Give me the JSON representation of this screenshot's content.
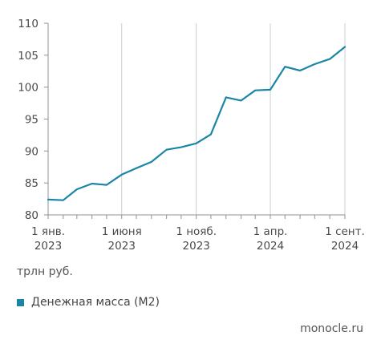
{
  "chart_data": {
    "type": "line",
    "title": "",
    "xlabel": "",
    "ylabel": "",
    "unit_label": "трлн руб.",
    "ylim": [
      80,
      110
    ],
    "yticks": [
      80,
      85,
      90,
      95,
      100,
      105,
      110
    ],
    "xlim": [
      "2023-01-01",
      "2024-09-01"
    ],
    "xticks": [
      {
        "date": "2023-01-01",
        "line1": "1 янв.",
        "line2": "2023"
      },
      {
        "date": "2023-06-01",
        "line1": "1 июня",
        "line2": "2023"
      },
      {
        "date": "2023-11-01",
        "line1": "1 нояб.",
        "line2": "2023"
      },
      {
        "date": "2024-04-01",
        "line1": "1 апр.",
        "line2": "2024"
      },
      {
        "date": "2024-09-01",
        "line1": "1 сент.",
        "line2": "2024"
      }
    ],
    "grid": "vertical",
    "legend_position": "bottom-left",
    "series": [
      {
        "name": "Денежная масса (М2)",
        "color": "#1a86a6",
        "points": [
          {
            "x": "2023-01-01",
            "y": 82.4
          },
          {
            "x": "2023-02-01",
            "y": 82.3
          },
          {
            "x": "2023-03-01",
            "y": 84.0
          },
          {
            "x": "2023-04-01",
            "y": 84.9
          },
          {
            "x": "2023-05-01",
            "y": 84.7
          },
          {
            "x": "2023-06-01",
            "y": 86.3
          },
          {
            "x": "2023-07-01",
            "y": 87.3
          },
          {
            "x": "2023-08-01",
            "y": 88.3
          },
          {
            "x": "2023-09-01",
            "y": 90.2
          },
          {
            "x": "2023-10-01",
            "y": 90.6
          },
          {
            "x": "2023-11-01",
            "y": 91.2
          },
          {
            "x": "2023-12-01",
            "y": 92.6
          },
          {
            "x": "2024-01-01",
            "y": 98.4
          },
          {
            "x": "2024-02-01",
            "y": 97.9
          },
          {
            "x": "2024-03-01",
            "y": 99.5
          },
          {
            "x": "2024-04-01",
            "y": 99.6
          },
          {
            "x": "2024-05-01",
            "y": 103.2
          },
          {
            "x": "2024-06-01",
            "y": 102.6
          },
          {
            "x": "2024-07-01",
            "y": 103.6
          },
          {
            "x": "2024-08-01",
            "y": 104.4
          },
          {
            "x": "2024-09-01",
            "y": 106.3
          }
        ]
      }
    ]
  },
  "source": "monocle.ru"
}
